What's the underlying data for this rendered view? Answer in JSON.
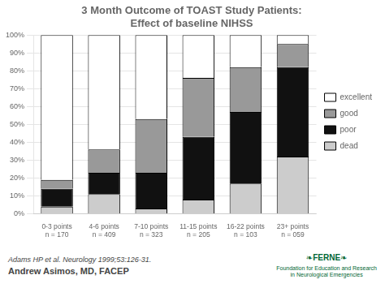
{
  "chart_data": {
    "type": "bar",
    "stacked": true,
    "title": "3 Month Outcome of TOAST Study Patients:\nEffect of baseline NIHSS",
    "categories": [
      "0-3 points\nn = 170",
      "4-6 points\nn = 409",
      "7-10 points\nn = 323",
      "11-15 points\nn = 205",
      "16-22 points\nn = 103",
      "23+ points\nn = 059"
    ],
    "series": [
      {
        "name": "dead",
        "color": "#cccccc",
        "values": [
          4,
          11,
          3,
          8,
          17,
          32
        ]
      },
      {
        "name": "poor",
        "color": "#111111",
        "values": [
          10,
          12,
          20,
          35,
          40,
          50
        ]
      },
      {
        "name": "good",
        "color": "#999999",
        "values": [
          5,
          13,
          30,
          33,
          25,
          13
        ]
      },
      {
        "name": "excellent",
        "color": "#ffffff",
        "values": [
          81,
          64,
          47,
          24,
          18,
          5
        ]
      }
    ],
    "ylim": [
      0,
      100
    ],
    "yticks": [
      {
        "value": 0,
        "label": "0%"
      },
      {
        "value": 10,
        "label": "10%"
      },
      {
        "value": 20,
        "label": "20%"
      },
      {
        "value": 30,
        "label": "30%"
      },
      {
        "value": 40,
        "label": "40%"
      },
      {
        "value": 50,
        "label": "50%"
      },
      {
        "value": 60,
        "label": "60%"
      },
      {
        "value": 70,
        "label": "70%"
      },
      {
        "value": 80,
        "label": "80%"
      },
      {
        "value": 90,
        "label": "90%"
      },
      {
        "value": 100,
        "label": "100%"
      }
    ],
    "grid": true,
    "legend": "right",
    "annotations": [
      "Adams HP et al. Neurology 1999;53:126-31.",
      "Andrew Asimos, MD, FACEP",
      "❧FERNE❧",
      "Foundation for Education and Research\nin Neurological Emergencies"
    ]
  }
}
